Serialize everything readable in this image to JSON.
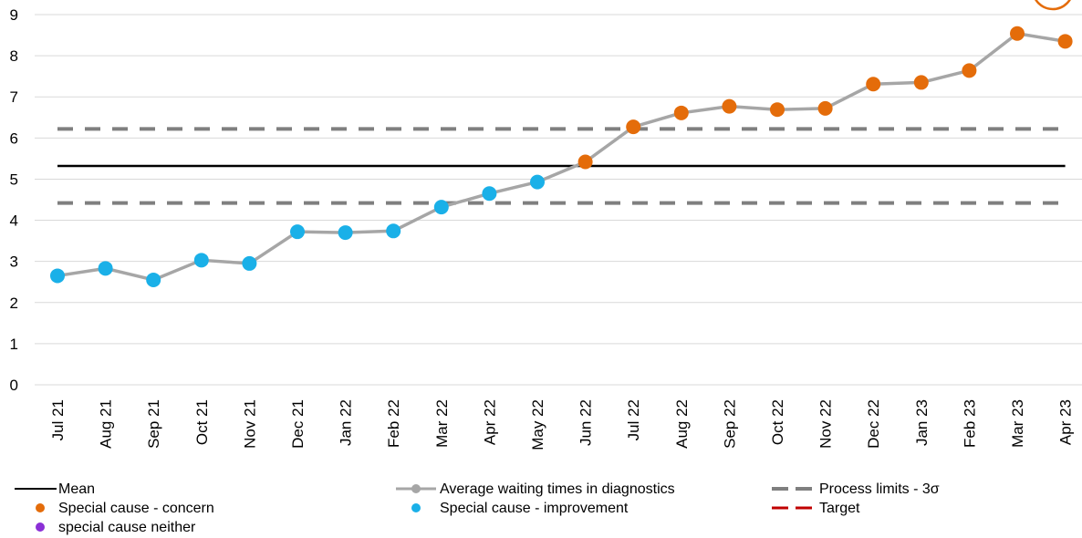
{
  "chart_data": {
    "type": "line",
    "categories": [
      "Jul 21",
      "Aug 21",
      "Sep 21",
      "Oct 21",
      "Nov 21",
      "Dec 21",
      "Jan 22",
      "Feb 22",
      "Mar 22",
      "Apr 22",
      "May 22",
      "Jun 22",
      "Jul 22",
      "Aug 22",
      "Sep 22",
      "Oct 22",
      "Nov 22",
      "Dec 22",
      "Jan 23",
      "Feb 23",
      "Mar 23",
      "Apr 23"
    ],
    "series": [
      {
        "name": "Average waiting times in diagnostics",
        "values": [
          2.65,
          2.83,
          2.55,
          3.03,
          2.95,
          3.72,
          3.7,
          3.74,
          4.32,
          4.65,
          4.93,
          5.42,
          6.27,
          6.61,
          6.77,
          6.69,
          6.72,
          7.31,
          7.35,
          7.64,
          8.54,
          8.35
        ],
        "point_class": [
          "improvement",
          "improvement",
          "improvement",
          "improvement",
          "improvement",
          "improvement",
          "improvement",
          "improvement",
          "improvement",
          "improvement",
          "improvement",
          "concern",
          "concern",
          "concern",
          "concern",
          "concern",
          "concern",
          "concern",
          "concern",
          "concern",
          "concern",
          "concern"
        ]
      }
    ],
    "mean": 5.32,
    "process_limits": {
      "upper": 6.22,
      "lower": 4.42
    },
    "ylim": [
      0,
      9
    ],
    "yticks": [
      "0",
      "1",
      "2",
      "3",
      "4",
      "5",
      "6",
      "7",
      "8",
      "9"
    ],
    "xlabel": "",
    "ylabel": "",
    "title": "",
    "grid": true,
    "legend": {
      "placement": "bottom",
      "items": [
        {
          "key": "mean",
          "label": "Mean"
        },
        {
          "key": "series",
          "label": "Average waiting times in diagnostics"
        },
        {
          "key": "limits",
          "label": "Process limits - 3σ"
        },
        {
          "key": "concern",
          "label": "Special cause - concern"
        },
        {
          "key": "improvement",
          "label": "Special cause  - improvement"
        },
        {
          "key": "target",
          "label": "Target"
        },
        {
          "key": "neither",
          "label": "special cause neither"
        }
      ]
    },
    "colors": {
      "line": "#a6a6a6",
      "mean": "#000000",
      "limits": "#7f7f7f",
      "target": "#c00000",
      "concern": "#e46c0a",
      "improvement": "#1ab0e8",
      "neither": "#8b2fd6",
      "grid": "#d9d9d9"
    }
  }
}
